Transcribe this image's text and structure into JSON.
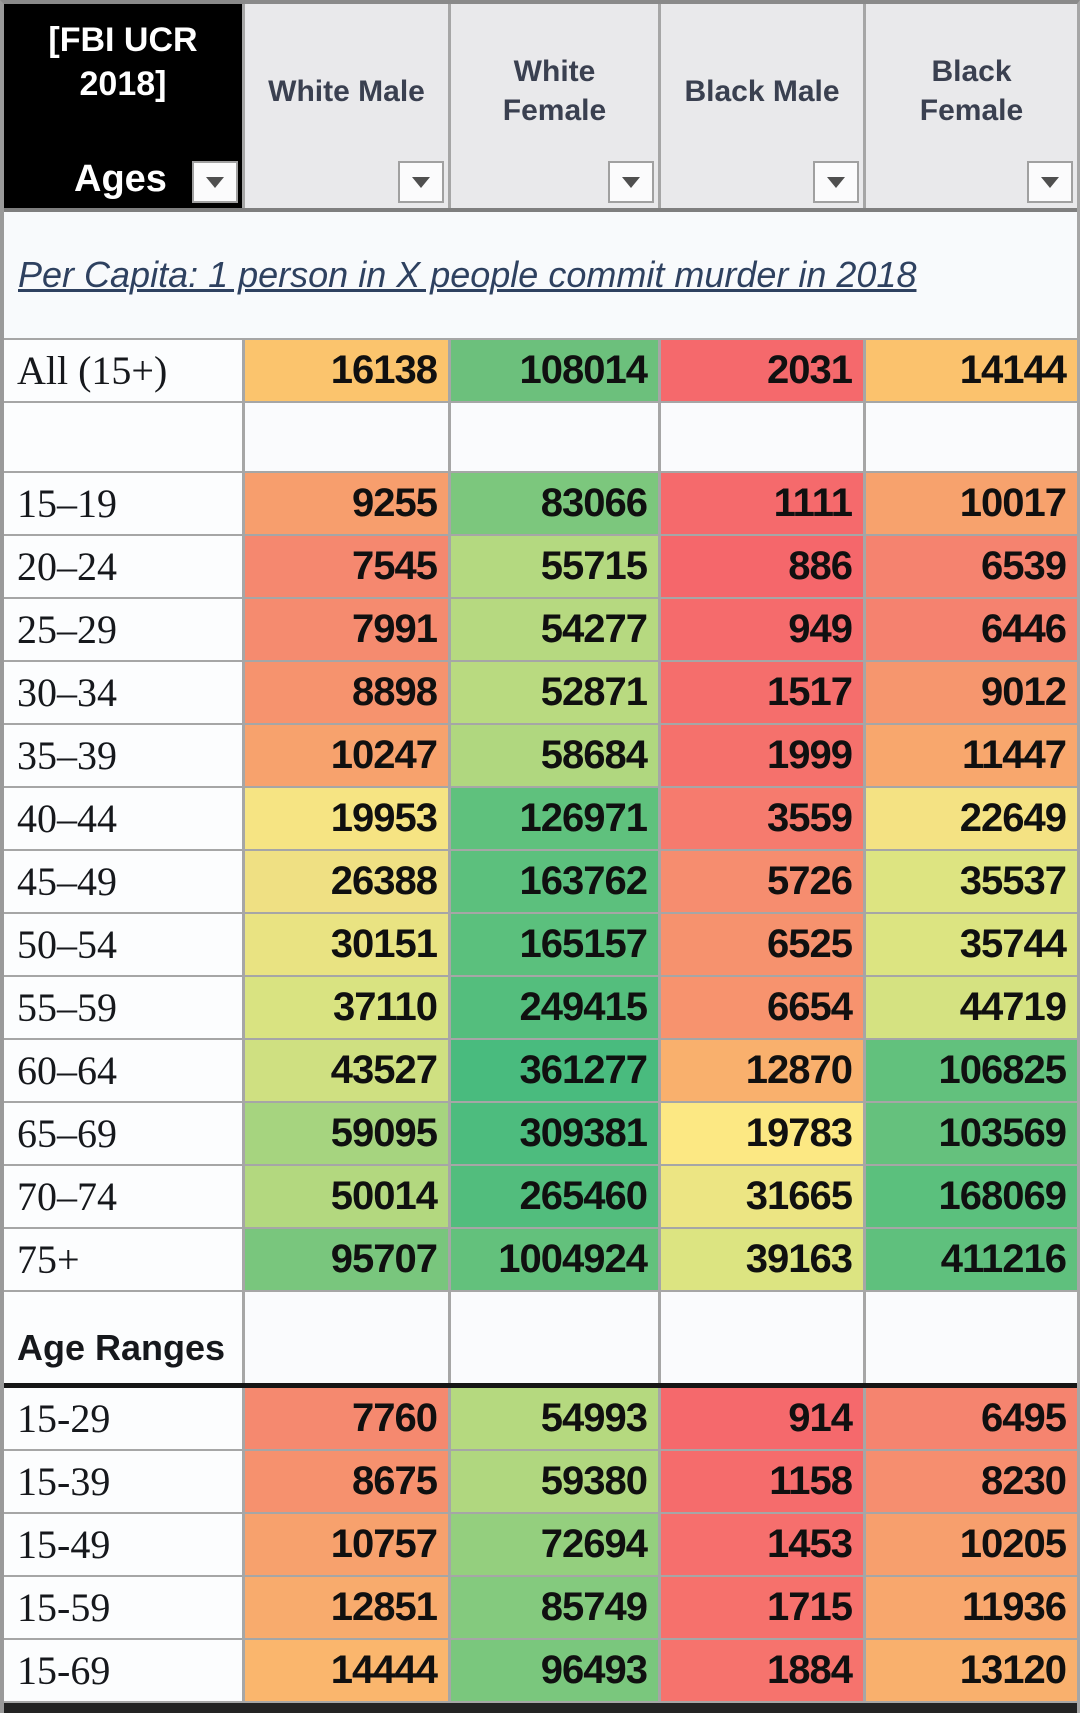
{
  "header": {
    "corner_title": "[FBI UCR 2018]",
    "corner_label": "Ages",
    "columns": [
      "White Male",
      "White Female",
      "Black Male",
      "Black Female"
    ]
  },
  "subtitle": "Per Capita: 1 person in X people commit murder in 2018",
  "colors": {
    "grid_line": "#a6a6a6",
    "header_bg": "#e9e9eb",
    "header_text": "#3a4050",
    "corner_bg": "#000000",
    "subtitle_text": "#2e4160",
    "scale_red": "#f5696c",
    "scale_yellow": "#fce883",
    "scale_green": "#63c17c"
  },
  "table": {
    "rows": [
      {
        "type": "data",
        "label": "All (15+)",
        "values": [
          "16138",
          "108014",
          "2031",
          "14144"
        ],
        "colors": [
          "#fbc46d",
          "#6cc07c",
          "#f5696c",
          "#fbc26d"
        ]
      },
      {
        "type": "empty",
        "label": "",
        "values": [
          "",
          "",
          "",
          ""
        ],
        "colors": [
          "",
          "",
          "",
          ""
        ]
      },
      {
        "type": "data",
        "label": "15–19",
        "values": [
          "9255",
          "83066",
          "1111",
          "10017"
        ],
        "colors": [
          "#f79e6d",
          "#7cc77d",
          "#f56a6c",
          "#f7a26d"
        ]
      },
      {
        "type": "data",
        "label": "20–24",
        "values": [
          "7545",
          "55715",
          "886",
          "6539"
        ],
        "colors": [
          "#f5886f",
          "#b4d980",
          "#f5676b",
          "#f5836f"
        ]
      },
      {
        "type": "data",
        "label": "25–29",
        "values": [
          "7991",
          "54277",
          "949",
          "6446"
        ],
        "colors": [
          "#f58b6f",
          "#b6d980",
          "#f56b6c",
          "#f5826f"
        ]
      },
      {
        "type": "data",
        "label": "30–34",
        "values": [
          "8898",
          "52871",
          "1517",
          "9012"
        ],
        "colors": [
          "#f6936e",
          "#b9da80",
          "#f56e6c",
          "#f6966e"
        ]
      },
      {
        "type": "data",
        "label": "35–39",
        "values": [
          "10247",
          "58684",
          "1999",
          "11447"
        ],
        "colors": [
          "#f7a26d",
          "#b0d77f",
          "#f5716c",
          "#f8a76d"
        ]
      },
      {
        "type": "data",
        "label": "40–44",
        "values": [
          "19953",
          "126971",
          "3559",
          "22649"
        ],
        "colors": [
          "#f6e483",
          "#5fc17d",
          "#f67b6e",
          "#f4e283"
        ]
      },
      {
        "type": "data",
        "label": "45–49",
        "values": [
          "26388",
          "163762",
          "5726",
          "35537"
        ],
        "colors": [
          "#efe083",
          "#5cc07d",
          "#f68d6f",
          "#dde481"
        ]
      },
      {
        "type": "data",
        "label": "50–54",
        "values": [
          "30151",
          "165157",
          "6525",
          "35744"
        ],
        "colors": [
          "#e9e382",
          "#5bc07d",
          "#f6926e",
          "#dce481"
        ]
      },
      {
        "type": "data",
        "label": "55–59",
        "values": [
          "37110",
          "249415",
          "6654",
          "44719"
        ],
        "colors": [
          "#d9e381",
          "#54be7d",
          "#f7936e",
          "#d5e281"
        ]
      },
      {
        "type": "data",
        "label": "60–64",
        "values": [
          "43527",
          "361277",
          "12870",
          "106825"
        ],
        "colors": [
          "#cfe081",
          "#49bb7e",
          "#f9b06d",
          "#62c17d"
        ]
      },
      {
        "type": "data",
        "label": "65–69",
        "values": [
          "59095",
          "309381",
          "19783",
          "103569"
        ],
        "colors": [
          "#a6d47f",
          "#4dbc7e",
          "#fce883",
          "#65c17d"
        ]
      },
      {
        "type": "data",
        "label": "70–74",
        "values": [
          "50014",
          "265460",
          "31665",
          "168069"
        ],
        "colors": [
          "#b3d87f",
          "#52bd7d",
          "#ece583",
          "#5bc07d"
        ]
      },
      {
        "type": "data",
        "label": "75+",
        "values": [
          "95707",
          "1004924",
          "39163",
          "411216"
        ],
        "colors": [
          "#79c67d",
          "#63c17c",
          "#dce481",
          "#5fc07d"
        ]
      },
      {
        "type": "section",
        "label": "Age Ranges",
        "values": [
          "",
          "",
          "",
          ""
        ],
        "colors": [
          "",
          "",
          "",
          ""
        ]
      },
      {
        "type": "data",
        "label": "15-29",
        "values": [
          "7760",
          "54993",
          "914",
          "6495"
        ],
        "colors": [
          "#f5896f",
          "#b5d97f",
          "#f5696c",
          "#f5846f"
        ]
      },
      {
        "type": "data",
        "label": "15-39",
        "values": [
          "8675",
          "59380",
          "1158",
          "8230"
        ],
        "colors": [
          "#f6916e",
          "#b0d77f",
          "#f56c6c",
          "#f68e6f"
        ]
      },
      {
        "type": "data",
        "label": "15-49",
        "values": [
          "10757",
          "72694",
          "1453",
          "10205"
        ],
        "colors": [
          "#f7a16d",
          "#94cf7e",
          "#f66f6d",
          "#f79f6d"
        ]
      },
      {
        "type": "data",
        "label": "15-59",
        "values": [
          "12851",
          "85749",
          "1715",
          "11936"
        ],
        "colors": [
          "#f8ab6d",
          "#84ca7e",
          "#f6716c",
          "#f8a76d"
        ]
      },
      {
        "type": "data",
        "label": "15-69",
        "values": [
          "14444",
          "96493",
          "1884",
          "13120"
        ],
        "colors": [
          "#fab66d",
          "#7ac77d",
          "#f6736d",
          "#f9b06d"
        ]
      }
    ]
  }
}
